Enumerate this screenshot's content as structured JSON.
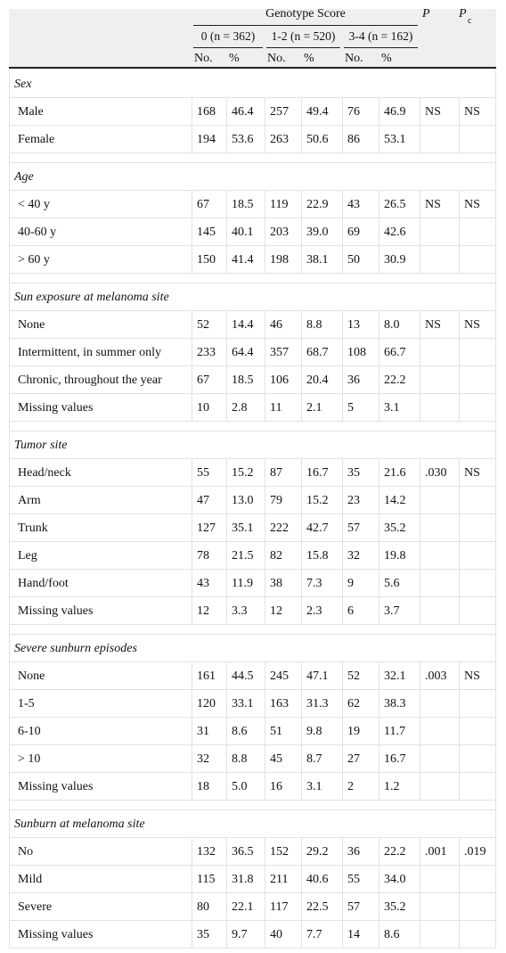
{
  "header": {
    "group": "Genotype Score",
    "p": "P",
    "pc": {
      "main": "P",
      "sub": "c"
    },
    "groups": [
      "0 (n = 362)",
      "1-2 (n = 520)",
      "3-4 (n = 162)"
    ],
    "sub": [
      "No.",
      "%",
      "No.",
      "%",
      "No.",
      "%"
    ]
  },
  "sections": [
    {
      "title": "Sex",
      "rows": [
        {
          "label": "Male",
          "values": [
            "168",
            "46.4",
            "257",
            "49.4",
            "76",
            "46.9"
          ],
          "p": "NS",
          "pc": "NS"
        },
        {
          "label": "Female",
          "values": [
            "194",
            "53.6",
            "263",
            "50.6",
            "86",
            "53.1"
          ]
        }
      ]
    },
    {
      "title": "Age",
      "rows": [
        {
          "label": "< 40 y",
          "values": [
            "67",
            "18.5",
            "119",
            "22.9",
            "43",
            "26.5"
          ],
          "p": "NS",
          "pc": "NS"
        },
        {
          "label": "40-60 y",
          "values": [
            "145",
            "40.1",
            "203",
            "39.0",
            "69",
            "42.6"
          ]
        },
        {
          "label": "> 60 y",
          "values": [
            "150",
            "41.4",
            "198",
            "38.1",
            "50",
            "30.9"
          ]
        }
      ]
    },
    {
      "title": "Sun exposure at melanoma site",
      "rows": [
        {
          "label": "None",
          "values": [
            "52",
            "14.4",
            "46",
            "8.8",
            "13",
            "8.0"
          ],
          "p": "NS",
          "pc": "NS"
        },
        {
          "label": "Intermittent, in summer only",
          "values": [
            "233",
            "64.4",
            "357",
            "68.7",
            "108",
            "66.7"
          ]
        },
        {
          "label": "Chronic, throughout the year",
          "values": [
            "67",
            "18.5",
            "106",
            "20.4",
            "36",
            "22.2"
          ]
        },
        {
          "label": "Missing values",
          "values": [
            "10",
            "2.8",
            "11",
            "2.1",
            "5",
            "3.1"
          ]
        }
      ]
    },
    {
      "title": "Tumor site",
      "rows": [
        {
          "label": "Head/neck",
          "values": [
            "55",
            "15.2",
            "87",
            "16.7",
            "35",
            "21.6"
          ],
          "p": ".030",
          "pc": "NS"
        },
        {
          "label": "Arm",
          "values": [
            "47",
            "13.0",
            "79",
            "15.2",
            "23",
            "14.2"
          ]
        },
        {
          "label": "Trunk",
          "values": [
            "127",
            "35.1",
            "222",
            "42.7",
            "57",
            "35.2"
          ]
        },
        {
          "label": "Leg",
          "values": [
            "78",
            "21.5",
            "82",
            "15.8",
            "32",
            "19.8"
          ]
        },
        {
          "label": "Hand/foot",
          "values": [
            "43",
            "11.9",
            "38",
            "7.3",
            "9",
            "5.6"
          ]
        },
        {
          "label": "Missing values",
          "values": [
            "12",
            "3.3",
            "12",
            "2.3",
            "6",
            "3.7"
          ]
        }
      ]
    },
    {
      "title": "Severe sunburn episodes",
      "rows": [
        {
          "label": "None",
          "values": [
            "161",
            "44.5",
            "245",
            "47.1",
            "52",
            "32.1"
          ],
          "p": ".003",
          "pc": "NS"
        },
        {
          "label": "1-5",
          "values": [
            "120",
            "33.1",
            "163",
            "31.3",
            "62",
            "38.3"
          ]
        },
        {
          "label": "6-10",
          "values": [
            "31",
            "8.6",
            "51",
            "9.8",
            "19",
            "11.7"
          ]
        },
        {
          "label": "> 10",
          "values": [
            "32",
            "8.8",
            "45",
            "8.7",
            "27",
            "16.7"
          ]
        },
        {
          "label": "Missing values",
          "values": [
            "18",
            "5.0",
            "16",
            "3.1",
            "2",
            "1.2"
          ]
        }
      ]
    },
    {
      "title": "Sunburn at melanoma site",
      "rows": [
        {
          "label": "No",
          "values": [
            "132",
            "36.5",
            "152",
            "29.2",
            "36",
            "22.2"
          ],
          "p": ".001",
          "pc": ".019"
        },
        {
          "label": "Mild",
          "values": [
            "115",
            "31.8",
            "211",
            "40.6",
            "55",
            "34.0"
          ]
        },
        {
          "label": "Severe",
          "values": [
            "80",
            "22.1",
            "117",
            "22.5",
            "57",
            "35.2"
          ]
        },
        {
          "label": "Missing values",
          "values": [
            "35",
            "9.7",
            "40",
            "7.7",
            "14",
            "8.6"
          ]
        }
      ]
    }
  ]
}
